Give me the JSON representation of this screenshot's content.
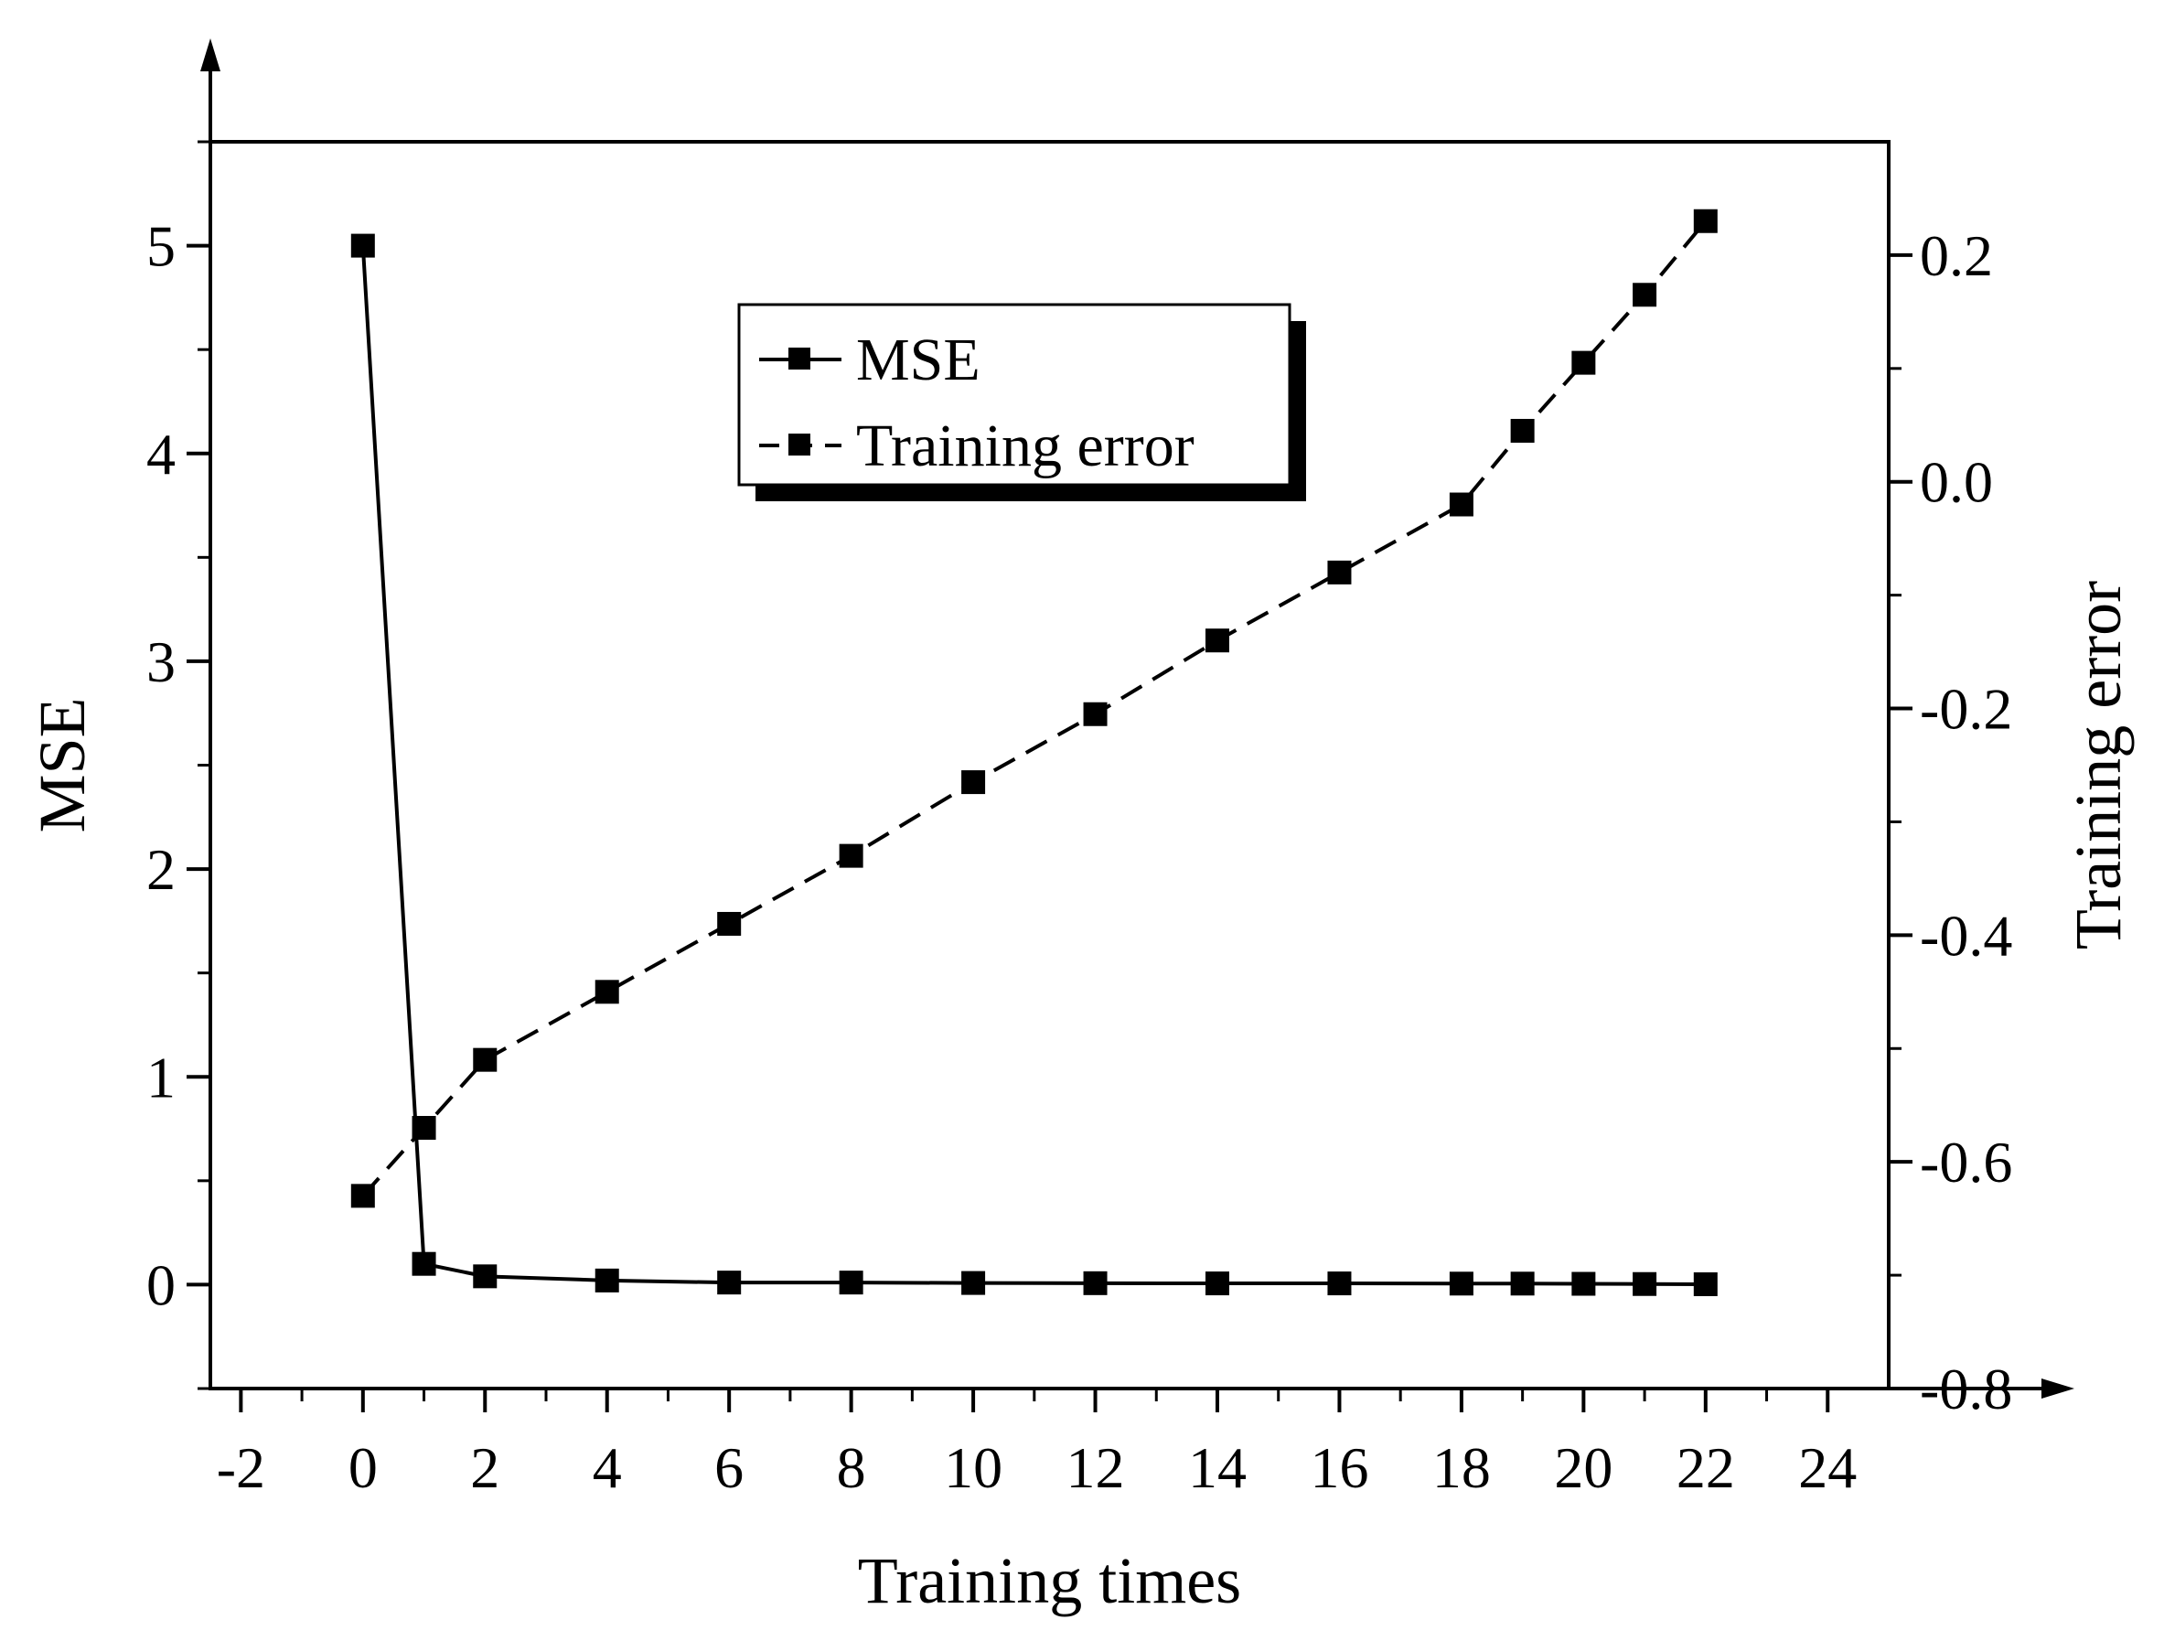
{
  "chart_data": {
    "type": "line",
    "xlabel": "Training times",
    "ylabel_left": "MSE",
    "ylabel_right": "Training error",
    "xlim": [
      -2.5,
      25
    ],
    "ylim_left": [
      -0.5,
      5.5
    ],
    "ylim_right": [
      -0.8,
      0.3
    ],
    "x_ticks": [
      -2,
      0,
      2,
      4,
      6,
      8,
      10,
      12,
      14,
      16,
      18,
      20,
      22,
      24
    ],
    "y_left_ticks": [
      0,
      1,
      2,
      3,
      4,
      5
    ],
    "y_right_ticks": [
      "0.2",
      "0.0",
      "-0.2",
      "-0.4",
      "-0.6",
      "-0.8"
    ],
    "y_right_tick_values": [
      0.2,
      0.0,
      -0.2,
      -0.4,
      -0.6,
      -0.8
    ],
    "legend_position": "top-center",
    "grid": false,
    "series": [
      {
        "name": "MSE",
        "axis": "left",
        "line_style": "solid",
        "marker": "square",
        "x": [
          0,
          1,
          2,
          4,
          6,
          8,
          10,
          12,
          14,
          16,
          18,
          19,
          20,
          21,
          22
        ],
        "y": [
          5.0,
          0.1,
          0.04,
          0.02,
          0.01,
          0.01,
          0.008,
          0.007,
          0.006,
          0.006,
          0.005,
          0.005,
          0.004,
          0.003,
          0.002
        ]
      },
      {
        "name": "Training error",
        "axis": "right",
        "line_style": "dashed",
        "marker": "square",
        "x": [
          0,
          1,
          2,
          4,
          6,
          8,
          10,
          12,
          14,
          16,
          18,
          19,
          20,
          21,
          22
        ],
        "y": [
          -0.63,
          -0.57,
          -0.51,
          -0.45,
          -0.39,
          -0.33,
          -0.265,
          -0.205,
          -0.14,
          -0.08,
          -0.02,
          0.045,
          0.105,
          0.165,
          0.23
        ]
      }
    ]
  }
}
